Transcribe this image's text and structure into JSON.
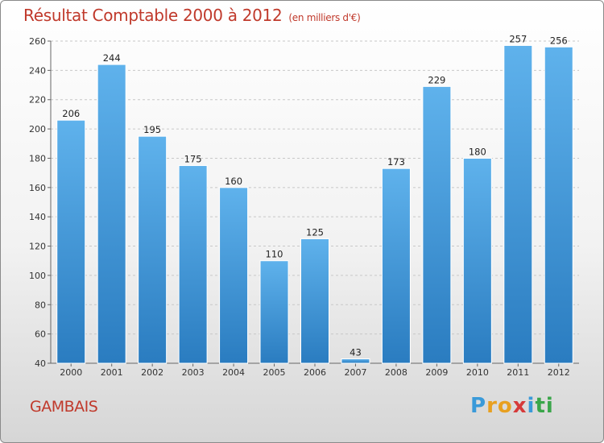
{
  "title": "Résultat Comptable 2000 à 2012",
  "unit_note": "(en milliers d'€)",
  "place": "GAMBAIS",
  "logo": {
    "text": "Proxiti",
    "letters": [
      "P",
      "r",
      "o",
      "x",
      "i",
      "t",
      "i"
    ],
    "colors": [
      "#3a9ad9",
      "#e8a020",
      "#e8a020",
      "#d63a3a",
      "#3a9ad9",
      "#3aa64a",
      "#3aa64a"
    ]
  },
  "colors": {
    "title": "#c0392b",
    "bar_light": "#5fb2ec",
    "bar_dark": "#2a7cc0"
  },
  "chart_data": {
    "type": "bar",
    "title": "Résultat Comptable 2000 à 2012",
    "subtitle": "(en milliers d'€)",
    "categories": [
      "2000",
      "2001",
      "2002",
      "2003",
      "2004",
      "2005",
      "2006",
      "2007",
      "2008",
      "2009",
      "2010",
      "2011",
      "2012"
    ],
    "values": [
      206,
      244,
      195,
      175,
      160,
      110,
      125,
      43,
      173,
      229,
      180,
      257,
      256
    ],
    "ylim": [
      40,
      260
    ],
    "yticks": [
      40,
      60,
      80,
      100,
      120,
      140,
      160,
      180,
      200,
      220,
      240,
      260
    ],
    "grid": true,
    "xlabel": "",
    "ylabel": ""
  }
}
